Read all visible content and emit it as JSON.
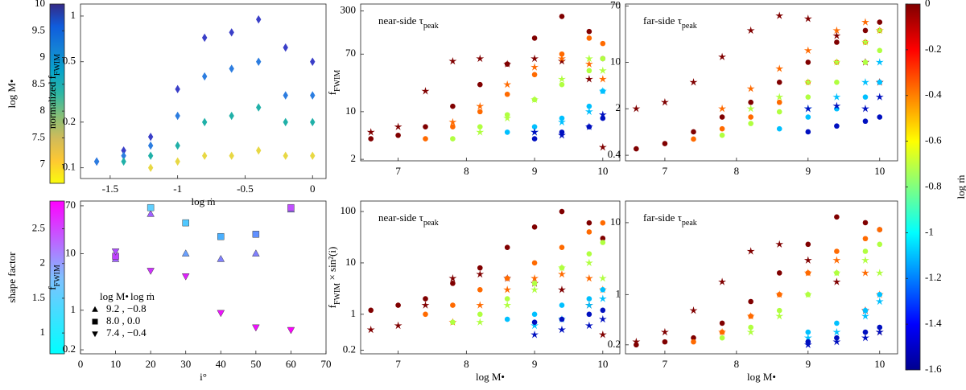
{
  "chart_data": [
    {
      "type": "colorbar",
      "label": "log M•",
      "lim": [
        6.65,
        10
      ],
      "ticks": [
        7,
        7.5,
        8,
        8.5,
        9,
        9.5,
        10
      ],
      "colormap": "parula_r"
    },
    {
      "type": "scatter",
      "ylog": true,
      "xlabel": [
        "log ṁ"
      ],
      "ylabel": [
        "normalized f",
        "FWIM"
      ],
      "x": [
        -1.6,
        -1.4,
        -1.2,
        -1,
        -0.8,
        -0.6,
        -0.4,
        -0.2,
        0
      ],
      "xlim": [
        -1.72,
        0.1
      ],
      "xticks": [
        -1.5,
        -1,
        -0.5,
        0
      ],
      "ylim": [
        0.085,
        1.2
      ],
      "yticks": [
        0.1,
        0.2,
        0.5,
        1
      ],
      "series": [
        {
          "marker": "diamond",
          "color": "#3a3fc8",
          "values": [
            0.11,
            0.13,
            0.16,
            0.33,
            0.72,
            0.78,
            0.95,
            0.62,
            0.5
          ]
        },
        {
          "marker": "diamond",
          "color": "#2c7de0",
          "values": [
            0.11,
            0.12,
            0.14,
            0.22,
            0.4,
            0.45,
            0.5,
            0.3,
            0.3
          ]
        },
        {
          "marker": "diamond",
          "color": "#20b0a8",
          "values": [
            null,
            0.11,
            0.12,
            0.14,
            0.2,
            0.22,
            0.25,
            0.2,
            0.2
          ]
        },
        {
          "marker": "diamond",
          "color": "#e8d844",
          "values": [
            null,
            null,
            0.1,
            0.11,
            0.12,
            0.12,
            0.13,
            0.12,
            0.12
          ]
        }
      ]
    },
    {
      "type": "scatter",
      "ylog": true,
      "ylabel": [
        "f",
        "FWIM"
      ],
      "annotation": [
        "near-side τ",
        "peak"
      ],
      "x": [
        6.6,
        7.0,
        7.4,
        7.8,
        8.2,
        8.6,
        9.0,
        9.4,
        9.8,
        10.0
      ],
      "xlim": [
        6.45,
        10.25
      ],
      "xticks": [
        7,
        8,
        9,
        10
      ],
      "ylim": [
        1.9,
        380
      ],
      "yticks": [
        2,
        10,
        70,
        300
      ],
      "series": [
        {
          "marker": "circle",
          "color": "#800000",
          "values": [
            4,
            4.5,
            6,
            12,
            25,
            50,
            120,
            250,
            150,
            60
          ]
        },
        {
          "marker": "star",
          "color": "#800000",
          "values": [
            5,
            6,
            20,
            55,
            60,
            50,
            60,
            55,
            30,
            3
          ]
        },
        {
          "marker": "circle",
          "color": "#ff6a00",
          "values": [
            null,
            null,
            4,
            6,
            10,
            18,
            35,
            70,
            120,
            100
          ]
        },
        {
          "marker": "star",
          "color": "#ff6a00",
          "values": [
            null,
            null,
            null,
            7,
            12,
            25,
            45,
            60,
            50,
            30
          ]
        },
        {
          "marker": "circle",
          "color": "#b0ff40",
          "values": [
            null,
            null,
            null,
            4,
            6,
            9,
            15,
            25,
            40,
            60
          ]
        },
        {
          "marker": "star",
          "color": "#b0ff40",
          "values": [
            null,
            null,
            null,
            null,
            5,
            8,
            15,
            30,
            60,
            40
          ]
        },
        {
          "marker": "circle",
          "color": "#00c0ff",
          "values": [
            null,
            null,
            null,
            null,
            null,
            5,
            6,
            8,
            12,
            20
          ]
        },
        {
          "marker": "star",
          "color": "#00c0ff",
          "values": [
            null,
            null,
            null,
            null,
            null,
            null,
            5,
            7,
            10,
            20
          ]
        },
        {
          "marker": "circle",
          "color": "#0010c0",
          "values": [
            null,
            null,
            null,
            null,
            null,
            null,
            4,
            5,
            6,
            8
          ]
        },
        {
          "marker": "star",
          "color": "#0010c0",
          "values": [
            null,
            null,
            null,
            null,
            null,
            null,
            5,
            4.5,
            6,
            9
          ]
        }
      ]
    },
    {
      "type": "scatter",
      "ylog": true,
      "annotation": [
        "far-side τ",
        "peak"
      ],
      "x": [
        6.6,
        7.0,
        7.4,
        7.8,
        8.2,
        8.6,
        9.0,
        9.4,
        9.8,
        10.0
      ],
      "xlim": [
        6.45,
        10.25
      ],
      "xticks": [
        7,
        8,
        9,
        10
      ],
      "ylim": [
        0.33,
        75
      ],
      "yticks": [
        0.4,
        2,
        10,
        70
      ],
      "series": [
        {
          "marker": "circle",
          "color": "#800000",
          "values": [
            0.5,
            0.6,
            0.9,
            1.5,
            2.5,
            5,
            10,
            20,
            30,
            40
          ]
        },
        {
          "marker": "star",
          "color": "#800000",
          "values": [
            2,
            2.5,
            5,
            12,
            30,
            50,
            45,
            25,
            10,
            5
          ]
        },
        {
          "marker": "circle",
          "color": "#ff6a00",
          "values": [
            null,
            null,
            0.7,
            1,
            1.5,
            2.5,
            5,
            10,
            20,
            30
          ]
        },
        {
          "marker": "star",
          "color": "#ff6a00",
          "values": [
            null,
            null,
            null,
            2,
            4,
            8,
            15,
            30,
            40,
            30
          ]
        },
        {
          "marker": "circle",
          "color": "#b0ff40",
          "values": [
            null,
            null,
            null,
            0.8,
            1.2,
            1.8,
            3,
            5,
            10,
            15
          ]
        },
        {
          "marker": "star",
          "color": "#b0ff40",
          "values": [
            null,
            null,
            null,
            null,
            2,
            3,
            5,
            10,
            20,
            30
          ]
        },
        {
          "marker": "circle",
          "color": "#00c0ff",
          "values": [
            null,
            null,
            null,
            null,
            null,
            1,
            1.5,
            2,
            3,
            5
          ]
        },
        {
          "marker": "star",
          "color": "#00c0ff",
          "values": [
            null,
            null,
            null,
            null,
            null,
            null,
            2,
            3,
            5,
            10
          ]
        },
        {
          "marker": "circle",
          "color": "#0010c0",
          "values": [
            null,
            null,
            null,
            null,
            null,
            null,
            0.9,
            1.1,
            1.3,
            1.5
          ]
        },
        {
          "marker": "star",
          "color": "#0010c0",
          "values": [
            null,
            null,
            null,
            null,
            null,
            null,
            2,
            2.2,
            2,
            3
          ]
        }
      ]
    },
    {
      "type": "colorbar",
      "label": "shape factor",
      "lim": [
        0.7,
        2.9
      ],
      "ticks": [
        1,
        1.5,
        2,
        2.5
      ],
      "colormap": "cool"
    },
    {
      "type": "scatter",
      "ylog": true,
      "xlabel": [
        "i°"
      ],
      "ylabel": [
        "f",
        "FWIM"
      ],
      "legend_title": [
        "log M•",
        "log ṁ"
      ],
      "x": [
        10,
        20,
        30,
        40,
        50,
        60
      ],
      "xlim": [
        0,
        70
      ],
      "xticks": [
        0,
        10,
        20,
        30,
        40,
        50,
        60,
        70
      ],
      "ylim": [
        0.17,
        85
      ],
      "yticks": [
        0.2,
        1,
        10,
        70
      ],
      "series": [
        {
          "name": "9.2 , −0.8",
          "marker": "triangle-up",
          "values": [
            8,
            50,
            10,
            8,
            10,
            60
          ],
          "colors": [
            "#a060ff",
            "#a060ff",
            "#6aa0ff",
            "#8080ff",
            "#8080ff",
            "#9070ff"
          ]
        },
        {
          "name": "8.0 , 0.0",
          "marker": "square",
          "values": [
            9,
            65,
            35,
            20,
            22,
            65
          ],
          "colors": [
            "#c040ff",
            "#60d0ff",
            "#50c8ff",
            "#4ab0ff",
            "#6090ff",
            "#c050ff"
          ]
        },
        {
          "name": "7.4 , −0.4",
          "marker": "triangle-down",
          "values": [
            11,
            5,
            4,
            0.9,
            0.5,
            0.45
          ],
          "colors": [
            "#b050ff",
            "#d030ff",
            "#e020ff",
            "#f010ff",
            "#f010ff",
            "#ff00ff"
          ]
        }
      ]
    },
    {
      "type": "scatter",
      "ylog": true,
      "xlabel": [
        "log M•"
      ],
      "ylabel": [
        "f",
        "FWIM",
        " × sin²(i)"
      ],
      "annotation": [
        "near-side τ",
        "peak"
      ],
      "x": [
        6.6,
        7.0,
        7.4,
        7.8,
        8.2,
        8.6,
        9.0,
        9.4,
        9.8,
        10.0
      ],
      "xlim": [
        6.45,
        10.25
      ],
      "xticks": [
        7,
        8,
        9,
        10
      ],
      "ylim": [
        0.17,
        160
      ],
      "yticks": [
        0.2,
        1,
        10,
        100
      ],
      "series": [
        {
          "marker": "circle",
          "color": "#800000",
          "values": [
            1.2,
            1.5,
            2,
            4,
            8,
            20,
            50,
            100,
            60,
            30
          ]
        },
        {
          "marker": "star",
          "color": "#800000",
          "values": [
            0.5,
            0.6,
            1.5,
            5,
            6,
            5,
            4,
            3,
            1.5,
            0.4
          ]
        },
        {
          "marker": "circle",
          "color": "#ff6a00",
          "values": [
            null,
            null,
            1,
            1.5,
            3,
            5,
            10,
            20,
            40,
            60
          ]
        },
        {
          "marker": "star",
          "color": "#ff6a00",
          "values": [
            null,
            null,
            null,
            0.7,
            1.5,
            3,
            5,
            6,
            5,
            3
          ]
        },
        {
          "marker": "circle",
          "color": "#b0ff40",
          "values": [
            null,
            null,
            null,
            0.7,
            1,
            2,
            4,
            8,
            15,
            25
          ]
        },
        {
          "marker": "star",
          "color": "#b0ff40",
          "values": [
            null,
            null,
            null,
            null,
            0.7,
            1.5,
            3,
            8,
            10,
            5
          ]
        },
        {
          "marker": "circle",
          "color": "#00c0ff",
          "values": [
            null,
            null,
            null,
            null,
            null,
            0.8,
            1,
            1.5,
            2,
            3
          ]
        },
        {
          "marker": "star",
          "color": "#00c0ff",
          "values": [
            null,
            null,
            null,
            null,
            null,
            null,
            0.6,
            0.8,
            1.5,
            2
          ]
        },
        {
          "marker": "circle",
          "color": "#0010c0",
          "values": [
            null,
            null,
            null,
            null,
            null,
            null,
            0.7,
            0.8,
            1,
            1.2
          ]
        },
        {
          "marker": "star",
          "color": "#0010c0",
          "values": [
            null,
            null,
            null,
            null,
            null,
            null,
            0.4,
            0.5,
            0.6,
            0.8
          ]
        }
      ]
    },
    {
      "type": "scatter",
      "ylog": true,
      "xlabel": [
        "log M•"
      ],
      "annotation": [
        "far-side τ",
        "peak"
      ],
      "x": [
        6.6,
        7.0,
        7.4,
        7.8,
        8.2,
        8.6,
        9.0,
        9.4,
        9.8,
        10.0
      ],
      "xlim": [
        6.45,
        10.25
      ],
      "xticks": [
        7,
        8,
        9,
        10
      ],
      "ylim": [
        0.15,
        20
      ],
      "yticks": [
        0.2,
        1,
        10
      ],
      "series": [
        {
          "marker": "circle",
          "color": "#800000",
          "values": [
            0.2,
            0.22,
            0.25,
            0.4,
            0.8,
            2,
            5,
            12,
            10,
            8
          ]
        },
        {
          "marker": "star",
          "color": "#800000",
          "values": [
            0.22,
            0.3,
            0.6,
            1.5,
            4,
            5,
            3,
            1.5,
            0.6,
            0.3
          ]
        },
        {
          "marker": "circle",
          "color": "#ff6a00",
          "values": [
            null,
            null,
            0.22,
            0.3,
            0.5,
            1,
            2,
            4,
            6,
            8
          ]
        },
        {
          "marker": "star",
          "color": "#ff6a00",
          "values": [
            null,
            null,
            null,
            0.3,
            0.5,
            1,
            2,
            3,
            2,
            1
          ]
        },
        {
          "marker": "circle",
          "color": "#b0ff40",
          "values": [
            null,
            null,
            null,
            0.25,
            0.35,
            0.6,
            1,
            2,
            4,
            5
          ]
        },
        {
          "marker": "star",
          "color": "#b0ff40",
          "values": [
            null,
            null,
            null,
            null,
            0.3,
            0.5,
            1,
            2,
            3,
            2
          ]
        },
        {
          "marker": "circle",
          "color": "#00c0ff",
          "values": [
            null,
            null,
            null,
            null,
            null,
            null,
            0.3,
            0.4,
            0.6,
            1
          ]
        },
        {
          "marker": "star",
          "color": "#00c0ff",
          "values": [
            null,
            null,
            null,
            null,
            null,
            null,
            0.25,
            0.3,
            0.5,
            0.8
          ]
        },
        {
          "marker": "circle",
          "color": "#0010c0",
          "values": [
            null,
            null,
            null,
            null,
            null,
            null,
            0.22,
            0.25,
            0.3,
            0.35
          ]
        },
        {
          "marker": "star",
          "color": "#0010c0",
          "values": [
            null,
            null,
            null,
            null,
            null,
            null,
            0.2,
            0.22,
            0.25,
            0.3
          ]
        }
      ]
    },
    {
      "type": "colorbar",
      "label": "log ṁ",
      "lim": [
        -1.6,
        0
      ],
      "ticks": [
        0,
        -0.2,
        -0.4,
        -0.6,
        -0.8,
        -1,
        -1.2,
        -1.4,
        -1.6
      ],
      "colormap": "jet",
      "side": "right"
    }
  ]
}
